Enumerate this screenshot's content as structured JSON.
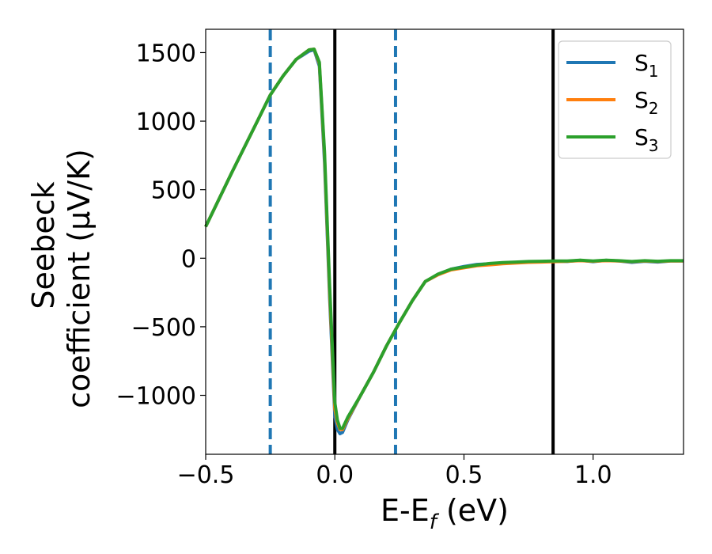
{
  "chart_data": {
    "type": "line",
    "xlabel": "E-E",
    "xlabel_sub": "f",
    "xlabel_unit": " (eV)",
    "ylabel_line1": "Seebeck",
    "ylabel_line2": "coefficient  (μV/K)",
    "xlim": [
      -0.5,
      1.35
    ],
    "ylim": [
      -1430,
      1670
    ],
    "x_ticks": [
      -0.5,
      0.0,
      0.5,
      1.0
    ],
    "x_tick_labels": [
      "−0.5",
      "0.0",
      "0.5",
      "1.0"
    ],
    "y_ticks": [
      -1000,
      -500,
      0,
      500,
      1000,
      1500
    ],
    "y_tick_labels": [
      "−1000",
      "−500",
      "0",
      "500",
      "1000",
      "1500"
    ],
    "vertical_lines": [
      {
        "x": -0.25,
        "style": "dashed",
        "color": "#1f77b4"
      },
      {
        "x": 0.0,
        "style": "solid",
        "color": "#000000"
      },
      {
        "x": 0.235,
        "style": "dashed",
        "color": "#1f77b4"
      },
      {
        "x": 0.845,
        "style": "solid",
        "color": "#000000"
      }
    ],
    "legend_position": "top-right",
    "series": [
      {
        "name": "S",
        "sub": "1",
        "color": "#1f77b4",
        "x": [
          -0.5,
          -0.4,
          -0.3,
          -0.25,
          -0.2,
          -0.15,
          -0.1,
          -0.08,
          -0.06,
          -0.04,
          -0.02,
          0.0,
          0.01,
          0.02,
          0.03,
          0.05,
          0.1,
          0.15,
          0.2,
          0.25,
          0.3,
          0.35,
          0.4,
          0.45,
          0.5,
          0.55,
          0.6,
          0.65,
          0.7,
          0.75,
          0.8,
          0.85,
          0.9,
          0.95,
          1.0,
          1.05,
          1.1,
          1.15,
          1.2,
          1.25,
          1.3,
          1.35
        ],
        "y": [
          230,
          620,
          1000,
          1190,
          1330,
          1450,
          1510,
          1520,
          1400,
          700,
          -300,
          -1150,
          -1250,
          -1280,
          -1270,
          -1180,
          -1000,
          -830,
          -640,
          -470,
          -310,
          -170,
          -120,
          -80,
          -60,
          -45,
          -40,
          -35,
          -30,
          -28,
          -25,
          -22,
          -24,
          -15,
          -25,
          -15,
          -20,
          -30,
          -22,
          -28,
          -20,
          -20
        ]
      },
      {
        "name": "S",
        "sub": "2",
        "color": "#ff7f0e",
        "x": [
          -0.5,
          -0.4,
          -0.3,
          -0.25,
          -0.2,
          -0.15,
          -0.1,
          -0.08,
          -0.06,
          -0.04,
          -0.02,
          0.0,
          0.01,
          0.02,
          0.03,
          0.05,
          0.1,
          0.15,
          0.2,
          0.25,
          0.3,
          0.35,
          0.4,
          0.45,
          0.5,
          0.55,
          0.6,
          0.65,
          0.7,
          0.75,
          0.8,
          0.85,
          0.9,
          0.95,
          1.0,
          1.05,
          1.1,
          1.15,
          1.2,
          1.25,
          1.3,
          1.35
        ],
        "y": [
          230,
          620,
          1000,
          1190,
          1330,
          1450,
          1520,
          1525,
          1420,
          750,
          -250,
          -1100,
          -1200,
          -1250,
          -1250,
          -1170,
          -1000,
          -830,
          -640,
          -470,
          -310,
          -170,
          -120,
          -85,
          -70,
          -55,
          -48,
          -40,
          -35,
          -30,
          -28,
          -25,
          -22,
          -18,
          -22,
          -18,
          -20,
          -25,
          -20,
          -24,
          -20,
          -20
        ]
      },
      {
        "name": "S",
        "sub": "3",
        "color": "#2ca02c",
        "x": [
          -0.5,
          -0.4,
          -0.3,
          -0.25,
          -0.2,
          -0.15,
          -0.1,
          -0.08,
          -0.06,
          -0.04,
          -0.02,
          0.0,
          0.01,
          0.02,
          0.03,
          0.05,
          0.1,
          0.15,
          0.2,
          0.25,
          0.3,
          0.35,
          0.4,
          0.45,
          0.5,
          0.55,
          0.6,
          0.65,
          0.7,
          0.75,
          0.8,
          0.85,
          0.9,
          0.95,
          1.0,
          1.05,
          1.1,
          1.15,
          1.2,
          1.25,
          1.3,
          1.35
        ],
        "y": [
          230,
          620,
          1000,
          1190,
          1330,
          1450,
          1520,
          1525,
          1430,
          780,
          -200,
          -1050,
          -1180,
          -1240,
          -1240,
          -1160,
          -1000,
          -830,
          -640,
          -470,
          -310,
          -170,
          -115,
          -80,
          -65,
          -50,
          -38,
          -32,
          -28,
          -24,
          -22,
          -20,
          -20,
          -14,
          -20,
          -14,
          -18,
          -24,
          -18,
          -22,
          -18,
          -18
        ]
      }
    ]
  }
}
